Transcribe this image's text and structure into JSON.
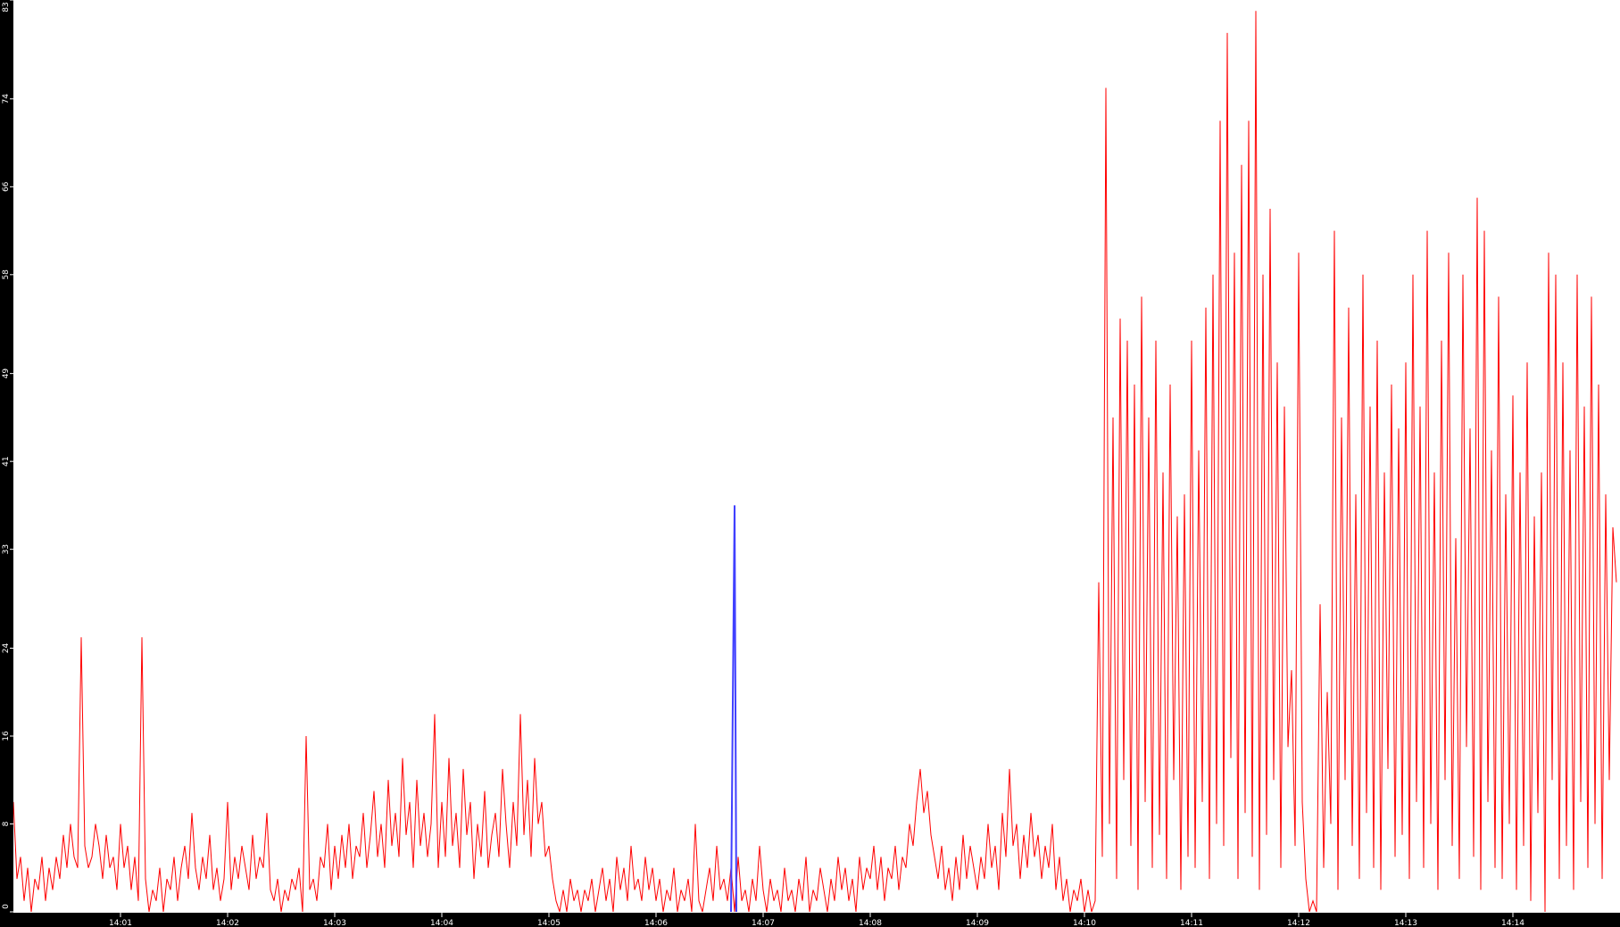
{
  "chart_data": {
    "type": "line",
    "title": "",
    "xlabel": "",
    "ylabel": "",
    "ylim": [
      0,
      83
    ],
    "xlim": [
      "14:00:00",
      "14:15:00"
    ],
    "grid": false,
    "legend": "none",
    "background": "#ffffff",
    "axis_background": "#000000",
    "y_ticks": [
      "0",
      "8",
      "16",
      "24",
      "33",
      "41",
      "49",
      "58",
      "66",
      "74",
      "83"
    ],
    "x_ticks": [
      "14:01",
      "14:02",
      "14:03",
      "14:04",
      "14:05",
      "14:06",
      "14:07",
      "14:08",
      "14:09",
      "14:10",
      "14:11",
      "14:12",
      "14:13",
      "14:14"
    ],
    "series": [
      {
        "color": "#ff0000",
        "start": "14:00:00",
        "step_seconds": 2,
        "values": [
          10,
          3,
          5,
          1,
          4,
          0,
          3,
          2,
          5,
          1,
          4,
          2,
          5,
          3,
          7,
          4,
          8,
          5,
          4,
          25,
          6,
          4,
          5,
          8,
          6,
          3,
          7,
          4,
          5,
          2,
          8,
          4,
          6,
          2,
          5,
          1,
          25,
          3,
          0,
          2,
          1,
          4,
          0,
          3,
          2,
          5,
          1,
          4,
          6,
          3,
          9,
          4,
          2,
          5,
          3,
          7,
          2,
          4,
          1,
          3,
          10,
          2,
          5,
          3,
          6,
          4,
          2,
          7,
          3,
          5,
          4,
          9,
          2,
          1,
          3,
          0,
          2,
          1,
          3,
          2,
          4,
          0,
          16,
          2,
          3,
          1,
          5,
          4,
          8,
          2,
          6,
          3,
          7,
          4,
          8,
          3,
          6,
          5,
          9,
          4,
          7,
          11,
          5,
          8,
          4,
          12,
          6,
          9,
          5,
          14,
          7,
          10,
          4,
          12,
          6,
          9,
          5,
          8,
          18,
          4,
          10,
          5,
          14,
          6,
          9,
          4,
          13,
          7,
          10,
          3,
          8,
          5,
          11,
          4,
          7,
          9,
          5,
          13,
          8,
          4,
          10,
          6,
          18,
          7,
          12,
          5,
          14,
          8,
          10,
          5,
          6,
          3,
          1,
          0,
          2,
          0,
          3,
          1,
          2,
          0,
          2,
          1,
          3,
          0,
          2,
          4,
          1,
          3,
          0,
          5,
          2,
          4,
          1,
          6,
          2,
          3,
          1,
          5,
          2,
          4,
          1,
          3,
          0,
          2,
          1,
          4,
          0,
          2,
          1,
          3,
          0,
          8,
          1,
          0,
          2,
          4,
          1,
          6,
          2,
          3,
          1,
          4,
          0,
          5,
          1,
          2,
          0,
          3,
          1,
          6,
          2,
          0,
          3,
          1,
          2,
          0,
          4,
          1,
          2,
          0,
          3,
          1,
          5,
          0,
          2,
          1,
          4,
          2,
          0,
          3,
          1,
          5,
          2,
          4,
          1,
          3,
          0,
          5,
          2,
          4,
          3,
          6,
          2,
          5,
          1,
          4,
          3,
          6,
          2,
          5,
          4,
          8,
          6,
          10,
          13,
          9,
          11,
          7,
          5,
          3,
          6,
          2,
          4,
          1,
          5,
          2,
          7,
          3,
          6,
          4,
          2,
          5,
          3,
          8,
          4,
          6,
          2,
          9,
          5,
          13,
          6,
          8,
          3,
          7,
          4,
          9,
          5,
          7,
          3,
          6,
          4,
          8,
          2,
          5,
          1,
          3,
          0,
          2,
          1,
          3,
          0,
          2,
          0,
          1,
          30,
          5,
          75,
          8,
          45,
          3,
          54,
          12,
          52,
          6,
          48,
          2,
          56,
          10,
          45,
          4,
          52,
          7,
          40,
          3,
          48,
          12,
          36,
          2,
          38,
          5,
          52,
          4,
          42,
          10,
          55,
          3,
          58,
          8,
          72,
          6,
          80,
          14,
          60,
          3,
          68,
          9,
          72,
          5,
          82,
          2,
          58,
          7,
          64,
          12,
          50,
          4,
          46,
          15,
          22,
          6,
          60,
          10,
          3,
          0,
          1,
          0,
          28,
          4,
          20,
          8,
          62,
          2,
          45,
          12,
          55,
          6,
          38,
          3,
          58,
          9,
          46,
          4,
          52,
          2,
          40,
          13,
          48,
          5,
          44,
          7,
          50,
          3,
          58,
          10,
          46,
          4,
          62,
          8,
          40,
          2,
          52,
          12,
          60,
          6,
          34,
          3,
          58,
          15,
          44,
          5,
          65,
          2,
          62,
          10,
          42,
          4,
          56,
          3,
          38,
          8,
          47,
          2,
          40,
          6,
          50,
          1,
          36,
          9,
          40,
          0,
          60,
          12,
          58,
          3,
          50,
          6,
          42,
          2,
          58,
          10,
          46,
          4,
          56,
          8,
          48,
          3,
          38,
          12,
          35,
          30
        ]
      },
      {
        "color": "#4040ff",
        "points": [
          {
            "t": "14:06:42",
            "v": 0
          },
          {
            "t": "14:06:43",
            "v": 19
          },
          {
            "t": "14:06:44",
            "v": 37
          },
          {
            "t": "14:06:45",
            "v": 0
          }
        ]
      }
    ]
  }
}
